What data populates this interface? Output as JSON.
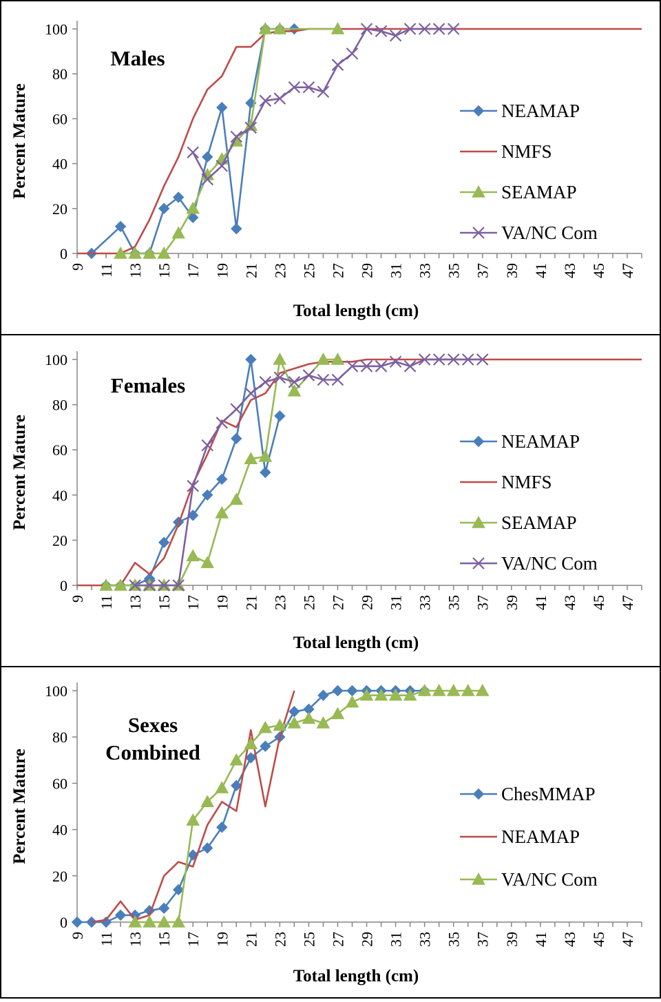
{
  "chart_data": [
    {
      "type": "line",
      "title": "Males",
      "xlabel": "Total length (cm)",
      "ylabel": "Percent Mature",
      "xlim": [
        9,
        48
      ],
      "ylim": [
        0,
        100
      ],
      "xticks": [
        "9",
        "11",
        "13",
        "15",
        "17",
        "19",
        "21",
        "23",
        "25",
        "27",
        "29",
        "31",
        "33",
        "35",
        "37",
        "39",
        "41",
        "43",
        "45",
        "47"
      ],
      "yticks": [
        "0",
        "20",
        "40",
        "60",
        "80",
        "100"
      ],
      "grid": false,
      "legend_position": "right",
      "series": [
        {
          "name": "NEAMAP",
          "color": "#4a7ebb",
          "marker": "diamond",
          "points": [
            [
              10,
              0
            ],
            [
              12,
              12
            ],
            [
              13,
              0
            ],
            [
              14,
              0
            ],
            [
              15,
              20
            ],
            [
              16,
              25
            ],
            [
              17,
              16
            ],
            [
              18,
              43
            ],
            [
              19,
              65
            ],
            [
              20,
              11
            ],
            [
              21,
              67
            ],
            [
              22,
              100
            ],
            [
              23,
              100
            ],
            [
              24,
              100
            ]
          ]
        },
        {
          "name": "NMFS",
          "color": "#be4b48",
          "marker": "none",
          "points": [
            [
              9,
              0
            ],
            [
              10,
              0
            ],
            [
              11,
              0
            ],
            [
              12,
              0
            ],
            [
              13,
              3
            ],
            [
              14,
              15
            ],
            [
              15,
              30
            ],
            [
              16,
              43
            ],
            [
              17,
              60
            ],
            [
              18,
              73
            ],
            [
              19,
              79
            ],
            [
              20,
              92
            ],
            [
              21,
              92
            ],
            [
              22,
              98
            ],
            [
              23,
              99
            ],
            [
              24,
              99
            ],
            [
              25,
              100
            ],
            [
              26,
              100
            ],
            [
              27,
              100
            ],
            [
              28,
              100
            ],
            [
              29,
              100
            ],
            [
              30,
              100
            ],
            [
              31,
              100
            ],
            [
              32,
              100
            ],
            [
              33,
              100
            ],
            [
              34,
              100
            ],
            [
              35,
              100
            ],
            [
              36,
              100
            ],
            [
              37,
              100
            ],
            [
              38,
              100
            ],
            [
              39,
              100
            ],
            [
              40,
              100
            ],
            [
              41,
              100
            ],
            [
              42,
              100
            ],
            [
              43,
              100
            ],
            [
              44,
              100
            ],
            [
              45,
              100
            ],
            [
              46,
              100
            ],
            [
              47,
              100
            ],
            [
              48,
              100
            ]
          ]
        },
        {
          "name": "SEAMAP",
          "color": "#98b954",
          "marker": "triangle",
          "points": [
            [
              12,
              0
            ],
            [
              13,
              0
            ],
            [
              14,
              0
            ],
            [
              15,
              0
            ],
            [
              16,
              9
            ],
            [
              17,
              20
            ],
            [
              18,
              35
            ],
            [
              19,
              42
            ],
            [
              20,
              50
            ],
            [
              21,
              57
            ],
            [
              22,
              100
            ],
            [
              23,
              100
            ],
            [
              27,
              100
            ]
          ]
        },
        {
          "name": "VA/NC Com",
          "color": "#7d60a0",
          "marker": "x",
          "points": [
            [
              17,
              45
            ],
            [
              18,
              33
            ],
            [
              19,
              39
            ],
            [
              20,
              52
            ],
            [
              21,
              56
            ],
            [
              22,
              68
            ],
            [
              23,
              69
            ],
            [
              24,
              74
            ],
            [
              25,
              74
            ],
            [
              26,
              72
            ],
            [
              27,
              84
            ],
            [
              28,
              89
            ],
            [
              29,
              100
            ],
            [
              30,
              99
            ],
            [
              31,
              97
            ],
            [
              32,
              100
            ],
            [
              33,
              100
            ],
            [
              34,
              100
            ],
            [
              35,
              100
            ]
          ]
        }
      ]
    },
    {
      "type": "line",
      "title": "Females",
      "xlabel": "Total length (cm)",
      "ylabel": "Percent Mature",
      "xlim": [
        9,
        48
      ],
      "ylim": [
        0,
        100
      ],
      "xticks": [
        "9",
        "11",
        "13",
        "15",
        "17",
        "19",
        "21",
        "23",
        "25",
        "27",
        "29",
        "31",
        "33",
        "35",
        "37",
        "39",
        "41",
        "43",
        "45",
        "47"
      ],
      "yticks": [
        "0",
        "20",
        "40",
        "60",
        "80",
        "100"
      ],
      "grid": false,
      "legend_position": "right",
      "series": [
        {
          "name": "NEAMAP",
          "color": "#4a7ebb",
          "marker": "diamond",
          "points": [
            [
              11,
              0
            ],
            [
              12,
              0
            ],
            [
              13,
              0
            ],
            [
              14,
              3
            ],
            [
              15,
              19
            ],
            [
              16,
              28
            ],
            [
              17,
              31
            ],
            [
              18,
              40
            ],
            [
              19,
              47
            ],
            [
              20,
              65
            ],
            [
              21,
              100
            ],
            [
              22,
              50
            ],
            [
              23,
              75
            ]
          ]
        },
        {
          "name": "NMFS",
          "color": "#be4b48",
          "marker": "none",
          "points": [
            [
              9,
              0
            ],
            [
              10,
              0
            ],
            [
              11,
              0
            ],
            [
              12,
              0
            ],
            [
              13,
              10
            ],
            [
              14,
              5
            ],
            [
              15,
              12
            ],
            [
              16,
              27
            ],
            [
              17,
              45
            ],
            [
              18,
              58
            ],
            [
              19,
              73
            ],
            [
              20,
              70
            ],
            [
              21,
              82
            ],
            [
              22,
              85
            ],
            [
              23,
              94
            ],
            [
              24,
              96
            ],
            [
              25,
              98
            ],
            [
              26,
              99
            ],
            [
              27,
              99
            ],
            [
              28,
              99
            ],
            [
              29,
              100
            ],
            [
              30,
              100
            ],
            [
              31,
              100
            ],
            [
              32,
              100
            ],
            [
              33,
              100
            ],
            [
              34,
              100
            ],
            [
              35,
              100
            ],
            [
              36,
              100
            ],
            [
              37,
              100
            ],
            [
              38,
              100
            ],
            [
              39,
              100
            ],
            [
              40,
              100
            ],
            [
              41,
              100
            ],
            [
              42,
              100
            ],
            [
              43,
              100
            ],
            [
              44,
              100
            ],
            [
              45,
              100
            ],
            [
              46,
              100
            ],
            [
              47,
              100
            ],
            [
              48,
              100
            ]
          ]
        },
        {
          "name": "SEAMAP",
          "color": "#98b954",
          "marker": "triangle",
          "points": [
            [
              11,
              0
            ],
            [
              12,
              0
            ],
            [
              13,
              0
            ],
            [
              14,
              0
            ],
            [
              15,
              0
            ],
            [
              16,
              0
            ],
            [
              17,
              13
            ],
            [
              18,
              10
            ],
            [
              19,
              32
            ],
            [
              20,
              38
            ],
            [
              21,
              56
            ],
            [
              22,
              57
            ],
            [
              23,
              100
            ],
            [
              24,
              86
            ],
            [
              26,
              100
            ],
            [
              27,
              100
            ]
          ]
        },
        {
          "name": "VA/NC Com",
          "color": "#7d60a0",
          "marker": "x",
          "points": [
            [
              13,
              0
            ],
            [
              14,
              0
            ],
            [
              15,
              0
            ],
            [
              16,
              0
            ],
            [
              17,
              44
            ],
            [
              18,
              62
            ],
            [
              19,
              72
            ],
            [
              20,
              78
            ],
            [
              21,
              85
            ],
            [
              22,
              90
            ],
            [
              23,
              92
            ],
            [
              24,
              90
            ],
            [
              25,
              93
            ],
            [
              26,
              91
            ],
            [
              27,
              91
            ],
            [
              28,
              97
            ],
            [
              29,
              97
            ],
            [
              30,
              97
            ],
            [
              31,
              99
            ],
            [
              32,
              97
            ],
            [
              33,
              100
            ],
            [
              34,
              100
            ],
            [
              35,
              100
            ],
            [
              36,
              100
            ],
            [
              37,
              100
            ]
          ]
        }
      ]
    },
    {
      "type": "line",
      "title": "Sexes Combined",
      "xlabel": "Total length (cm)",
      "ylabel": "Percent Mature",
      "xlim": [
        9,
        48
      ],
      "ylim": [
        0,
        100
      ],
      "xticks": [
        "9",
        "11",
        "13",
        "15",
        "17",
        "19",
        "21",
        "23",
        "25",
        "27",
        "29",
        "31",
        "33",
        "35",
        "37",
        "39",
        "41",
        "43",
        "45",
        "47"
      ],
      "yticks": [
        "0",
        "20",
        "40",
        "60",
        "80",
        "100"
      ],
      "grid": false,
      "legend_position": "right",
      "series": [
        {
          "name": "ChesMMAP",
          "color": "#4a7ebb",
          "marker": "diamond",
          "points": [
            [
              9,
              0
            ],
            [
              10,
              0
            ],
            [
              11,
              0
            ],
            [
              12,
              3
            ],
            [
              13,
              3
            ],
            [
              14,
              5
            ],
            [
              15,
              6
            ],
            [
              16,
              14
            ],
            [
              17,
              29
            ],
            [
              18,
              32
            ],
            [
              19,
              41
            ],
            [
              20,
              59
            ],
            [
              21,
              71
            ],
            [
              22,
              76
            ],
            [
              23,
              80
            ],
            [
              24,
              91
            ],
            [
              25,
              92
            ],
            [
              26,
              98
            ],
            [
              27,
              100
            ],
            [
              28,
              100
            ],
            [
              29,
              100
            ],
            [
              30,
              100
            ],
            [
              31,
              100
            ],
            [
              32,
              100
            ],
            [
              33,
              100
            ]
          ]
        },
        {
          "name": "NEAMAP",
          "color": "#be4b48",
          "marker": "none",
          "points": [
            [
              10,
              0
            ],
            [
              11,
              1
            ],
            [
              12,
              9
            ],
            [
              13,
              1
            ],
            [
              14,
              3
            ],
            [
              15,
              20
            ],
            [
              16,
              26
            ],
            [
              17,
              24
            ],
            [
              18,
              42
            ],
            [
              19,
              52
            ],
            [
              20,
              48
            ],
            [
              21,
              83
            ],
            [
              22,
              50
            ],
            [
              23,
              80
            ],
            [
              24,
              100
            ]
          ]
        },
        {
          "name": "VA/NC Com",
          "color": "#98b954",
          "marker": "triangle",
          "points": [
            [
              13,
              0
            ],
            [
              14,
              0
            ],
            [
              15,
              0
            ],
            [
              16,
              0
            ],
            [
              17,
              44
            ],
            [
              18,
              52
            ],
            [
              19,
              58
            ],
            [
              20,
              70
            ],
            [
              21,
              77
            ],
            [
              22,
              84
            ],
            [
              23,
              85
            ],
            [
              24,
              86
            ],
            [
              25,
              88
            ],
            [
              26,
              86
            ],
            [
              27,
              90
            ],
            [
              28,
              95
            ],
            [
              29,
              98
            ],
            [
              30,
              98
            ],
            [
              31,
              98
            ],
            [
              32,
              98
            ],
            [
              33,
              100
            ],
            [
              34,
              100
            ],
            [
              35,
              100
            ],
            [
              36,
              100
            ],
            [
              37,
              100
            ]
          ]
        }
      ]
    }
  ]
}
